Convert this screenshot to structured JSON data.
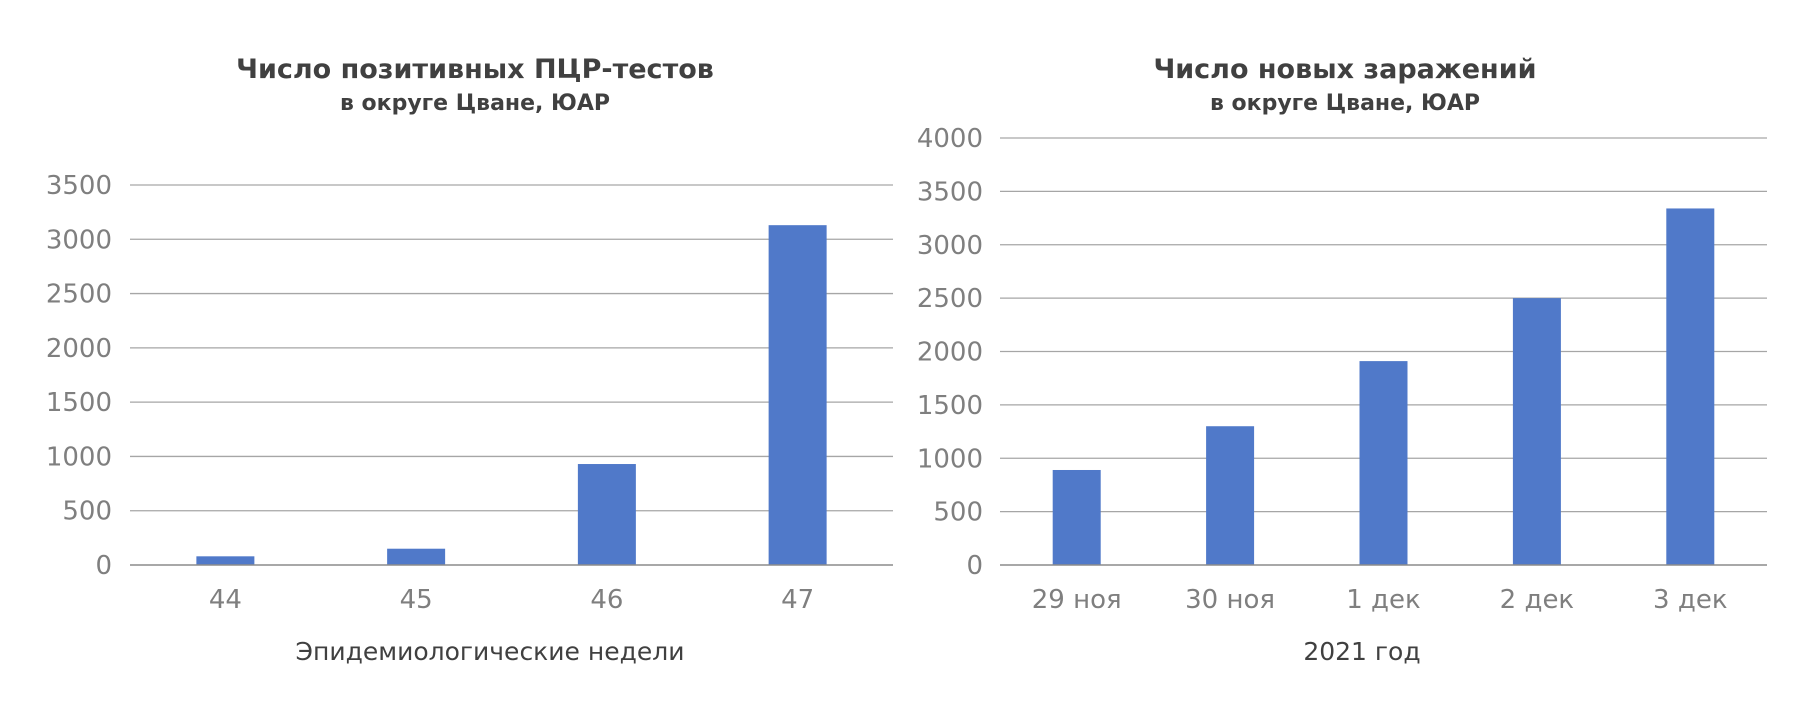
{
  "colors": {
    "bar": "#5079c9",
    "grid": "#a6a6a6",
    "axis": "#8c8c8c",
    "tick_text": "#7f7f7f",
    "title_text": "#404040"
  },
  "chart_data": [
    {
      "type": "bar",
      "title": "Число позитивных ПЦР-тестов",
      "subtitle": "в округе Цване, ЮАР",
      "xlabel": "Эпидемиологические недели",
      "ylabel": "",
      "categories": [
        "44",
        "45",
        "46",
        "47"
      ],
      "values": [
        80,
        150,
        930,
        3130
      ],
      "ylim": [
        0,
        3500
      ],
      "yticks": [
        0,
        500,
        1000,
        1500,
        2000,
        2500,
        3000,
        3500
      ],
      "ytick_labels": [
        "0",
        "500",
        "1000",
        "1500",
        "2000",
        "2500",
        "3000",
        "3500"
      ],
      "grid": true,
      "legend": "none"
    },
    {
      "type": "bar",
      "title": "Число новых заражений",
      "subtitle": "в округе Цване, ЮАР",
      "xlabel": "2021 год",
      "ylabel": "",
      "categories": [
        "29 ноя",
        "30 ноя",
        "1 дек",
        "2 дек",
        "3 дек"
      ],
      "values": [
        890,
        1300,
        1910,
        2500,
        3340
      ],
      "ylim": [
        0,
        4000
      ],
      "yticks": [
        0,
        500,
        1000,
        1500,
        2000,
        2500,
        3000,
        3500,
        4000
      ],
      "ytick_labels": [
        "0",
        "500",
        "1000",
        "1500",
        "2000",
        "2500",
        "3000",
        "3500",
        "4000"
      ],
      "grid": true,
      "legend": "none"
    }
  ]
}
